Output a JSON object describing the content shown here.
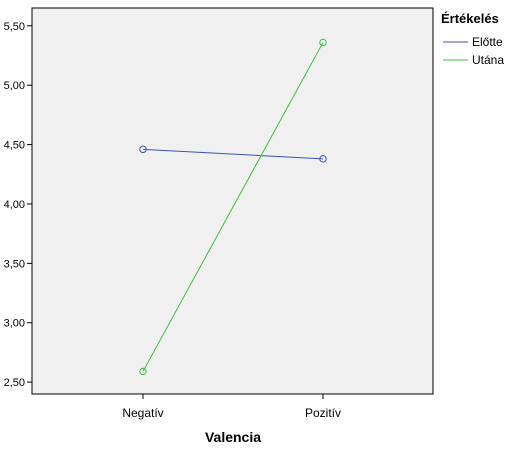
{
  "chart_data": {
    "type": "line",
    "title": "",
    "xlabel": "Valencia",
    "ylabel": "",
    "categories": [
      "Negatív",
      "Pozitív"
    ],
    "ylim": [
      2.4,
      5.65
    ],
    "yticks": [
      "2,50",
      "3,00",
      "3,50",
      "4,00",
      "4,50",
      "5,00",
      "5,50"
    ],
    "ytick_values": [
      2.5,
      3.0,
      3.5,
      4.0,
      4.5,
      5.0,
      5.5
    ],
    "grid": false,
    "legend": {
      "title": "Értékelés",
      "placement": "right"
    },
    "series": [
      {
        "name": "Előtte",
        "values": [
          4.46,
          4.38
        ],
        "color": "#3b55b4"
      },
      {
        "name": "Utána",
        "values": [
          2.59,
          5.36
        ],
        "color": "#3bbd3b"
      }
    ],
    "plot_background": "#f0f0f0"
  }
}
